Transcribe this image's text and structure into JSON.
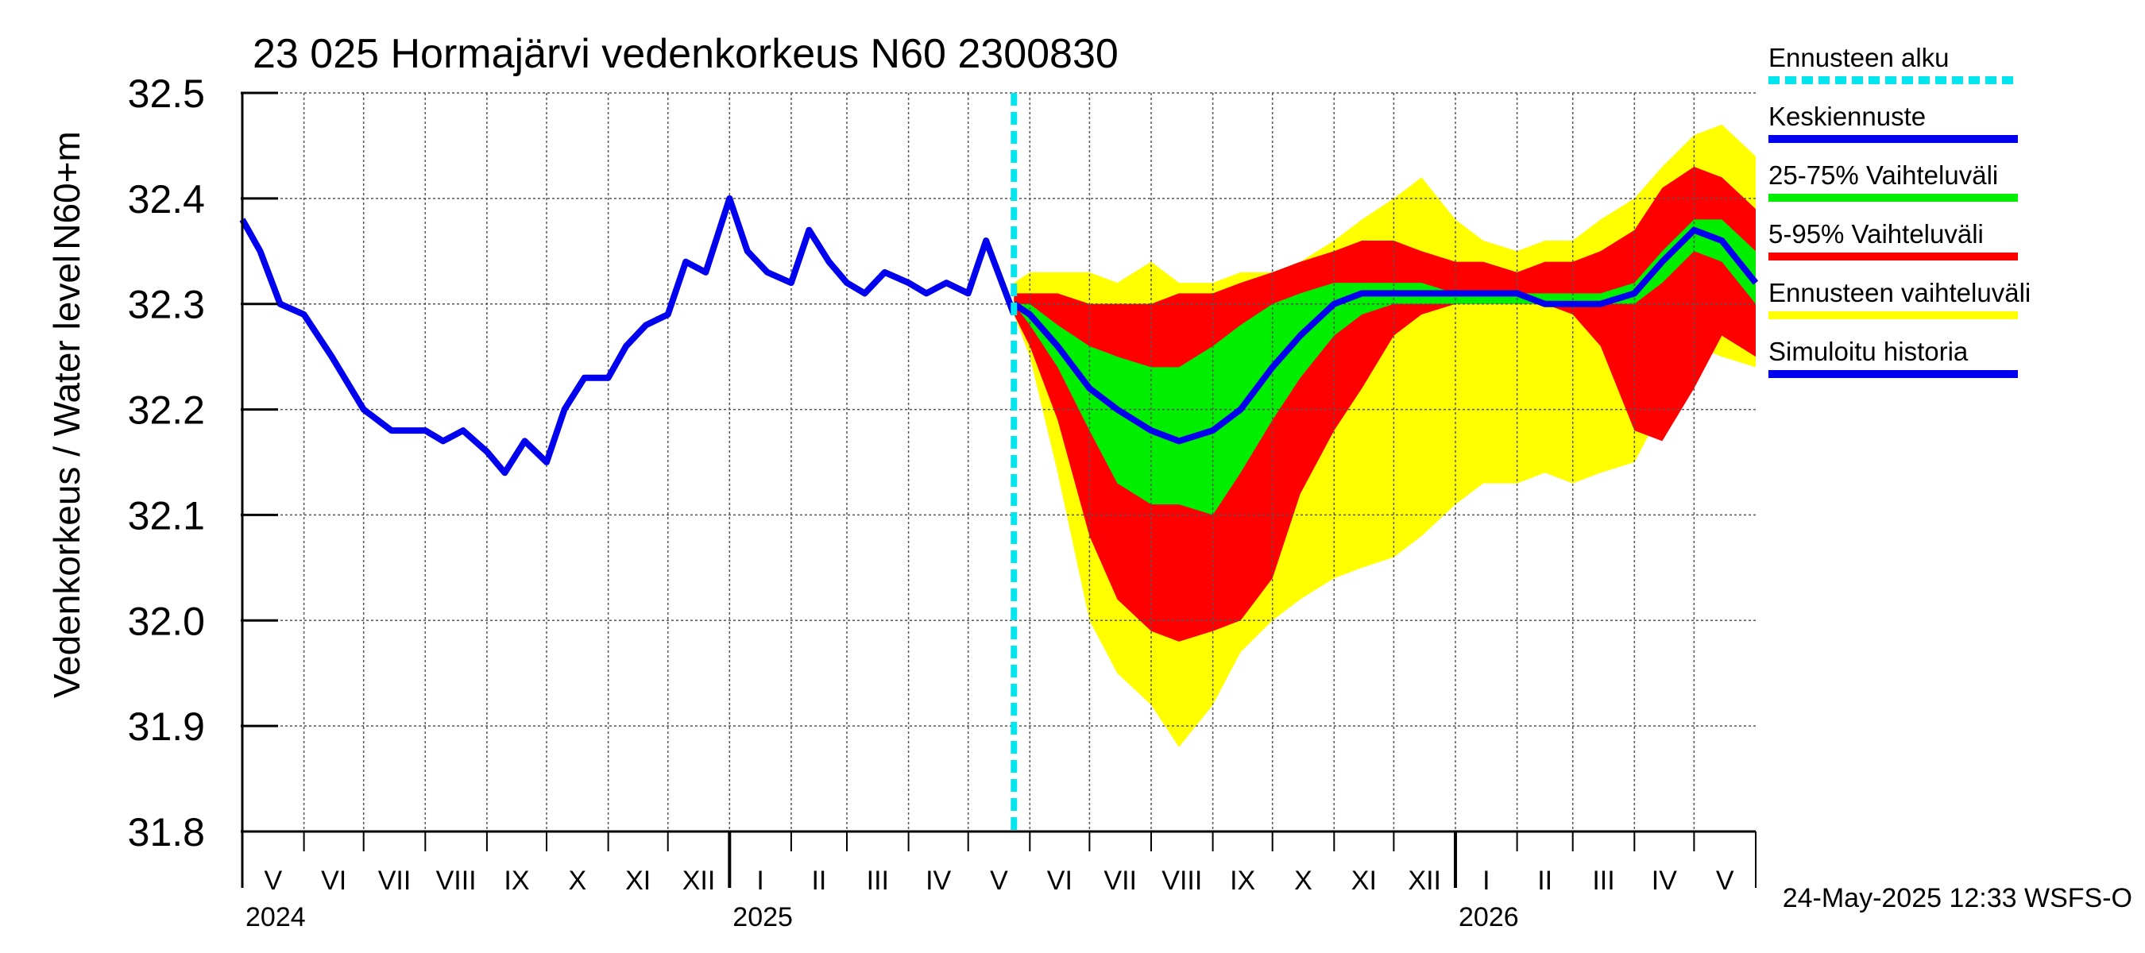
{
  "chart_data": {
    "type": "area",
    "title": "23 025 Hormajärvi vedenkorkeus N60 2300830",
    "ylabel_left": "Vedenkorkeus / Water level",
    "ylabel_right": "N60+m",
    "ylim": [
      31.8,
      32.5
    ],
    "yticks": [
      "32.5",
      "32.4",
      "32.3",
      "32.2",
      "32.1",
      "32.0",
      "31.9",
      "31.8"
    ],
    "x_start": "2024-05-01",
    "x_end": "2026-06-01",
    "forecast_start": "2025-05-24",
    "months": [
      "V",
      "VI",
      "VII",
      "VIII",
      "IX",
      "X",
      "XI",
      "XII",
      "I",
      "II",
      "III",
      "IV",
      "V",
      "VI",
      "VII",
      "VIII",
      "IX",
      "X",
      "XI",
      "XII",
      "I",
      "II",
      "III",
      "IV",
      "V"
    ],
    "years": [
      "2024",
      "2025",
      "2026"
    ],
    "timestamp": "24-May-2025 12:33 WSFS-O",
    "colors": {
      "forecast_start": "#00e5ee",
      "median": "#0000ee",
      "p25_75": "#00ee00",
      "p5_95": "#ff0000",
      "range": "#ffff00",
      "history": "#0000ee"
    },
    "legend": [
      {
        "label": "Ennusteen alku",
        "key": "forecast_start"
      },
      {
        "label": "Keskiennuste",
        "key": "median"
      },
      {
        "label": "25-75% Vaihteluväli",
        "key": "p25_75"
      },
      {
        "label": "5-95% Vaihteluväli",
        "key": "p5_95"
      },
      {
        "label": "Ennusteen vaihteluväli",
        "key": "range"
      },
      {
        "label": "Simuloitu historia",
        "key": "history"
      }
    ],
    "history": {
      "x": [
        "2024-05-01",
        "2024-05-10",
        "2024-05-20",
        "2024-06-01",
        "2024-06-15",
        "2024-07-01",
        "2024-07-15",
        "2024-08-01",
        "2024-08-10",
        "2024-08-20",
        "2024-09-01",
        "2024-09-10",
        "2024-09-20",
        "2024-10-01",
        "2024-10-10",
        "2024-10-20",
        "2024-11-01",
        "2024-11-10",
        "2024-11-20",
        "2024-12-01",
        "2024-12-10",
        "2024-12-20",
        "2025-01-01",
        "2025-01-10",
        "2025-01-20",
        "2025-02-01",
        "2025-02-10",
        "2025-02-20",
        "2025-03-01",
        "2025-03-10",
        "2025-03-20",
        "2025-04-01",
        "2025-04-10",
        "2025-04-20",
        "2025-05-01",
        "2025-05-10",
        "2025-05-24"
      ],
      "y": [
        32.38,
        32.35,
        32.3,
        32.29,
        32.25,
        32.2,
        32.18,
        32.18,
        32.17,
        32.18,
        32.16,
        32.14,
        32.17,
        32.15,
        32.2,
        32.23,
        32.23,
        32.26,
        32.28,
        32.29,
        32.34,
        32.33,
        32.4,
        32.35,
        32.33,
        32.32,
        32.37,
        32.34,
        32.32,
        32.31,
        32.33,
        32.32,
        32.31,
        32.32,
        32.31,
        32.36,
        32.29
      ]
    },
    "forecast": {
      "x": [
        "2025-05-24",
        "2025-06-01",
        "2025-06-15",
        "2025-07-01",
        "2025-07-15",
        "2025-08-01",
        "2025-08-15",
        "2025-09-01",
        "2025-09-15",
        "2025-10-01",
        "2025-10-15",
        "2025-11-01",
        "2025-11-15",
        "2025-12-01",
        "2025-12-15",
        "2026-01-01",
        "2026-01-15",
        "2026-02-01",
        "2026-02-15",
        "2026-03-01",
        "2026-03-15",
        "2026-04-01",
        "2026-04-15",
        "2026-05-01",
        "2026-05-15",
        "2026-06-01"
      ],
      "range_max": [
        32.32,
        32.33,
        32.33,
        32.33,
        32.32,
        32.34,
        32.32,
        32.32,
        32.33,
        32.33,
        32.34,
        32.36,
        32.38,
        32.4,
        32.42,
        32.38,
        32.36,
        32.35,
        32.36,
        32.36,
        32.38,
        32.4,
        32.43,
        32.46,
        32.47,
        32.44
      ],
      "p95": [
        32.31,
        32.31,
        32.31,
        32.3,
        32.3,
        32.3,
        32.31,
        32.31,
        32.32,
        32.33,
        32.34,
        32.35,
        32.36,
        32.36,
        32.35,
        32.34,
        32.34,
        32.33,
        32.34,
        32.34,
        32.35,
        32.37,
        32.41,
        32.43,
        32.42,
        32.39
      ],
      "p75": [
        32.3,
        32.3,
        32.28,
        32.26,
        32.25,
        32.24,
        32.24,
        32.26,
        32.28,
        32.3,
        32.31,
        32.32,
        32.32,
        32.32,
        32.32,
        32.31,
        32.31,
        32.31,
        32.31,
        32.31,
        32.31,
        32.32,
        32.35,
        32.38,
        32.38,
        32.35
      ],
      "median": [
        32.3,
        32.29,
        32.26,
        32.22,
        32.2,
        32.18,
        32.17,
        32.18,
        32.2,
        32.24,
        32.27,
        32.3,
        32.31,
        32.31,
        32.31,
        32.31,
        32.31,
        32.31,
        32.3,
        32.3,
        32.3,
        32.31,
        32.34,
        32.37,
        32.36,
        32.32
      ],
      "p25": [
        32.3,
        32.28,
        32.24,
        32.18,
        32.13,
        32.11,
        32.11,
        32.1,
        32.14,
        32.19,
        32.23,
        32.27,
        32.29,
        32.3,
        32.3,
        32.3,
        32.3,
        32.3,
        32.3,
        32.3,
        32.3,
        32.3,
        32.32,
        32.35,
        32.34,
        32.3
      ],
      "p5": [
        32.29,
        32.26,
        32.19,
        32.08,
        32.02,
        31.99,
        31.98,
        31.99,
        32.0,
        32.04,
        32.12,
        32.18,
        32.22,
        32.27,
        32.29,
        32.3,
        32.3,
        32.3,
        32.3,
        32.29,
        32.26,
        32.18,
        32.17,
        32.22,
        32.27,
        32.25
      ],
      "range_min": [
        32.29,
        32.25,
        32.14,
        32.0,
        31.95,
        31.92,
        31.88,
        31.92,
        31.97,
        32.0,
        32.02,
        32.04,
        32.05,
        32.06,
        32.08,
        32.11,
        32.13,
        32.13,
        32.14,
        32.13,
        32.14,
        32.15,
        32.2,
        32.26,
        32.25,
        32.24
      ]
    }
  }
}
